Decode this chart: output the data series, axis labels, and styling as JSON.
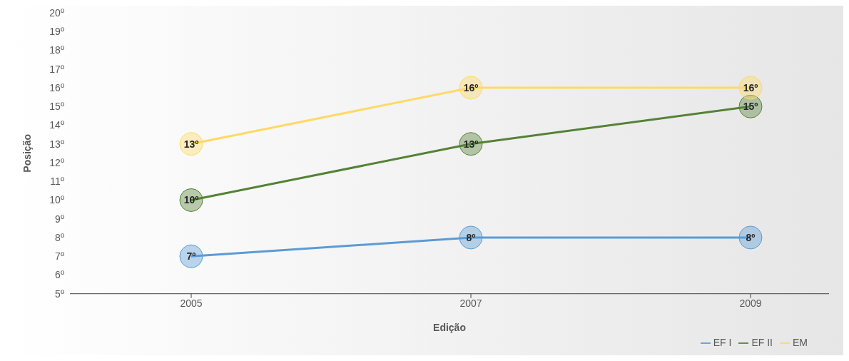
{
  "chart_data": {
    "type": "line",
    "xlabel": "Edição",
    "ylabel": "Posição",
    "categories": [
      "2005",
      "2007",
      "2009"
    ],
    "series": [
      {
        "name": "EF I",
        "color": "#5b9bd5",
        "values": [
          7,
          8,
          8
        ],
        "value_labels": [
          "7º",
          "8º",
          "8º"
        ]
      },
      {
        "name": "EF II",
        "color": "#548235",
        "values": [
          10,
          13,
          15
        ],
        "value_labels": [
          "10º",
          "13º",
          "15º"
        ]
      },
      {
        "name": "EM",
        "color": "#ffd966",
        "values": [
          13,
          16,
          16
        ],
        "value_labels": [
          "13º",
          "16º",
          "16º"
        ]
      }
    ],
    "ylim": [
      5,
      20
    ],
    "yticks": [
      {
        "value": 5,
        "label": "5º"
      },
      {
        "value": 6,
        "label": "6º"
      },
      {
        "value": 7,
        "label": "7º"
      },
      {
        "value": 8,
        "label": "8º"
      },
      {
        "value": 9,
        "label": "9º"
      },
      {
        "value": 10,
        "label": "10º"
      },
      {
        "value": 11,
        "label": "11º"
      },
      {
        "value": 12,
        "label": "12º"
      },
      {
        "value": 13,
        "label": "13º"
      },
      {
        "value": 14,
        "label": "14º"
      },
      {
        "value": 15,
        "label": "15º"
      },
      {
        "value": 16,
        "label": "16º"
      },
      {
        "value": 17,
        "label": "17º"
      },
      {
        "value": 18,
        "label": "18º"
      },
      {
        "value": 19,
        "label": "19º"
      },
      {
        "value": 20,
        "label": "20º"
      }
    ],
    "grid": false,
    "legend": "bottom right",
    "marker": "circle",
    "line_style": "solid"
  }
}
